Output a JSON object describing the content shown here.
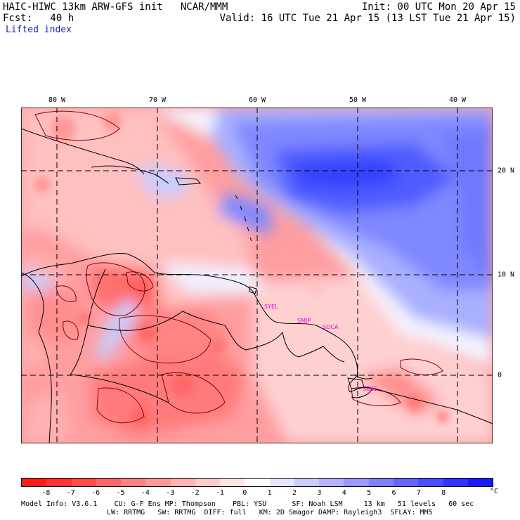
{
  "header": {
    "line1_left": "HAIC-HIWC 13km ARW-GFS init   NCAR/MMM",
    "line1_right": "Init: 00 UTC Mon 20 Apr 15",
    "line2_left": "Fcst:   40 h",
    "line2_right": "Valid: 16 UTC Tue 21 Apr 15 (13 LST Tue 21 Apr 15)",
    "field": "Lifted index"
  },
  "map": {
    "lon_labels": [
      "80 W",
      "70 W",
      "60 W",
      "50 W",
      "40 W"
    ],
    "lat_labels": [
      "20 N",
      "10 N",
      "0"
    ],
    "stations": [
      "SYEL",
      "SMJP",
      "SOCA",
      "SBBE"
    ]
  },
  "colorbar": {
    "ticks": [
      "-8",
      "-7",
      "-6",
      "-5",
      "-4",
      "-3",
      "-2",
      "-1",
      "0",
      "1",
      "2",
      "3",
      "4",
      "5",
      "6",
      "7",
      "8"
    ],
    "unit": "°C",
    "colors": [
      "#ff1a1a",
      "#ff3333",
      "#ff4d4d",
      "#ff6666",
      "#ff8080",
      "#ff9999",
      "#ffb3b3",
      "#ffcccc",
      "#ffe6e6",
      "#ffffff",
      "#e6e6ff",
      "#ccccff",
      "#b3b3ff",
      "#9999ff",
      "#8080ff",
      "#6666ff",
      "#4d4dff",
      "#3333ff",
      "#1a1aff"
    ]
  },
  "footer": {
    "line1": "Model Info: V3.6.1    CU: G-F Ens MP: Thompson    PBL: YSU      SF: Noah LSM     13 km   51 levels   60 sec",
    "line2": "LW: RRTMG   SW: RRTMG  DIFF: full   KM: 2D Smagor DAMP: Rayleigh3  SFLAY: MM5"
  }
}
